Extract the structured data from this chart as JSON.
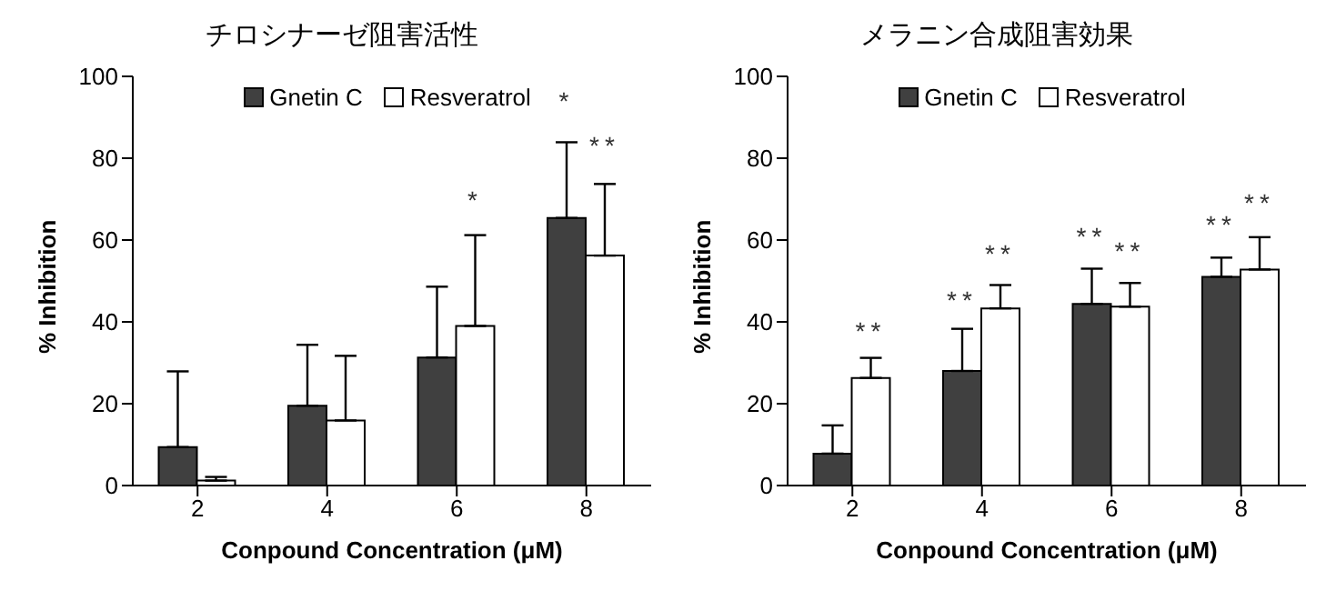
{
  "chart_data": [
    {
      "type": "bar",
      "title": "チロシナーゼ阻害活性",
      "xlabel": "Conpound Concentration (μM)",
      "ylabel": "% Inhibition",
      "categories": [
        "2",
        "4",
        "6",
        "8"
      ],
      "series": [
        {
          "name": "Gnetin C",
          "color": "#404040",
          "values": [
            9.4,
            19.5,
            31.3,
            65.4
          ],
          "errors": [
            [
              9.4,
              27.9
            ],
            [
              19.5,
              34.4
            ],
            [
              31.3,
              48.6
            ],
            [
              65.4,
              83.9
            ]
          ]
        },
        {
          "name": "Resveratrol",
          "color": "#ffffff",
          "values": [
            1.2,
            15.9,
            39,
            56.2
          ],
          "errors": [
            [
              1.2,
              2.1
            ],
            [
              15.9,
              31.7
            ],
            [
              39,
              61.2
            ],
            [
              56.2,
              73.7
            ]
          ]
        }
      ],
      "ylim": [
        0,
        100
      ],
      "yticks": [
        0,
        20,
        40,
        60,
        80,
        100
      ],
      "legend": "top",
      "annotations": [
        {
          "text": "*",
          "x": "6",
          "y": 61.2
        },
        {
          "text": "*",
          "x": "8",
          "y": 83.9
        },
        {
          "text": "**",
          "x": "8",
          "y": 73.7
        }
      ]
    },
    {
      "type": "bar",
      "title": "メラニン合成阻害効果",
      "xlabel": "Conpound Concentration (μM)",
      "ylabel": "% Inhibition",
      "categories": [
        "2",
        "4",
        "6",
        "8"
      ],
      "series": [
        {
          "name": "Gnetin C",
          "color": "#404040",
          "values": [
            7.8,
            28,
            44.4,
            51
          ],
          "errors": [
            [
              7.8,
              14.7
            ],
            [
              28,
              38.3
            ],
            [
              44.4,
              53
            ],
            [
              51,
              55.7
            ]
          ]
        },
        {
          "name": "Resveratrol",
          "color": "#ffffff",
          "values": [
            26.3,
            43.3,
            43.7,
            52.8
          ],
          "errors": [
            [
              26.3,
              31.2
            ],
            [
              43.3,
              49
            ],
            [
              43.7,
              49.5
            ],
            [
              52.8,
              60.7
            ]
          ]
        }
      ],
      "ylim": [
        0,
        100
      ],
      "yticks": [
        0,
        20,
        40,
        60,
        80,
        100
      ],
      "legend": "top",
      "annotations": [
        {
          "text": "**",
          "x": "2",
          "y": 31.2
        },
        {
          "text": "**",
          "x": "4",
          "y": 38.3
        },
        {
          "text": "**",
          "x": "4",
          "y": 49
        },
        {
          "text": "**",
          "x": "6",
          "y": 53
        },
        {
          "text": "**",
          "x": "6",
          "y": 49.5
        },
        {
          "text": "**",
          "x": "8",
          "y": 55.7
        },
        {
          "text": "**",
          "x": "8",
          "y": 60.7
        }
      ]
    }
  ]
}
